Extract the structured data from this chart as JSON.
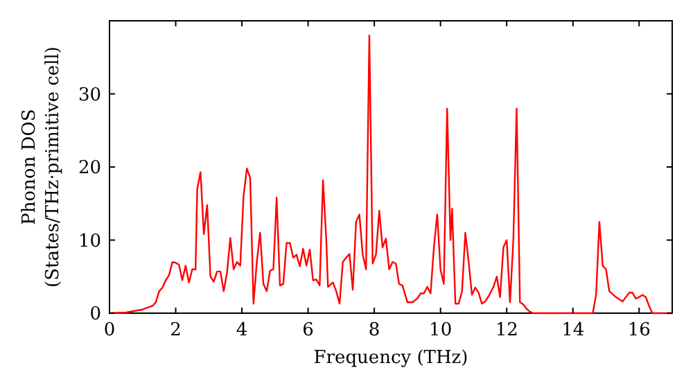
{
  "chart_data": {
    "type": "line",
    "xlabel": "Frequency (THz)",
    "ylabel": "Phonon DOS\n(States/THz·primitive cell)",
    "xlim": [
      0,
      17
    ],
    "ylim": [
      0,
      40
    ],
    "xticks": [
      0,
      2,
      4,
      6,
      8,
      10,
      12,
      14,
      16
    ],
    "yticks": [
      0,
      10,
      20,
      30
    ],
    "grid": false,
    "marker": "none",
    "line_style": "solid",
    "x": [
      0,
      0.5,
      1,
      1.3,
      1.4,
      1.5,
      1.6,
      1.7,
      1.8,
      1.9,
      2.0,
      2.1,
      2.2,
      2.3,
      2.4,
      2.5,
      2.6,
      2.65,
      2.75,
      2.85,
      2.95,
      3.05,
      3.15,
      3.25,
      3.35,
      3.45,
      3.55,
      3.65,
      3.75,
      3.85,
      3.95,
      4.05,
      4.15,
      4.25,
      4.35,
      4.45,
      4.55,
      4.65,
      4.75,
      4.85,
      4.95,
      5.05,
      5.15,
      5.25,
      5.35,
      5.45,
      5.55,
      5.65,
      5.75,
      5.85,
      5.95,
      6.05,
      6.15,
      6.25,
      6.35,
      6.45,
      6.55,
      6.6,
      6.75,
      6.85,
      6.95,
      7.05,
      7.15,
      7.25,
      7.35,
      7.45,
      7.55,
      7.65,
      7.75,
      7.85,
      7.95,
      8.05,
      8.15,
      8.25,
      8.35,
      8.45,
      8.55,
      8.65,
      8.75,
      8.85,
      9.0,
      9.15,
      9.3,
      9.4,
      9.5,
      9.6,
      9.7,
      9.8,
      9.9,
      10.0,
      10.1,
      10.2,
      10.3,
      10.35,
      10.45,
      10.55,
      10.65,
      10.75,
      10.85,
      10.95,
      11.05,
      11.15,
      11.25,
      11.35,
      11.45,
      11.6,
      11.7,
      11.8,
      11.9,
      12.0,
      12.1,
      12.2,
      12.3,
      12.4,
      12.5,
      12.6,
      12.7,
      12.8,
      13.5,
      14.6,
      14.7,
      14.8,
      14.9,
      15.0,
      15.1,
      15.3,
      15.5,
      15.7,
      15.8,
      15.9,
      16.0,
      16.1,
      16.2,
      16.3,
      16.4,
      17
    ],
    "series": [
      {
        "color": "#ff0000",
        "values": [
          0,
          0.1,
          0.5,
          1,
          1.5,
          3,
          3.5,
          4.5,
          5.2,
          7,
          6.9,
          6.6,
          4.5,
          6.5,
          4.2,
          6,
          6,
          17,
          19.3,
          10.8,
          14.8,
          5,
          4.3,
          5.7,
          5.7,
          3,
          5.5,
          10.3,
          6,
          7,
          6.5,
          16,
          19.8,
          18.5,
          1.3,
          7,
          11,
          4,
          3,
          5.8,
          6,
          15.8,
          3.8,
          4,
          9.6,
          9.6,
          7.6,
          8,
          6.4,
          8.8,
          6.5,
          8.7,
          4.5,
          4.6,
          3.8,
          18.2,
          10,
          3.6,
          4.2,
          3,
          1.3,
          7,
          7.6,
          8.1,
          3.2,
          12.5,
          13.5,
          8,
          6,
          38,
          6.8,
          8,
          14,
          9,
          10.2,
          6,
          7,
          6.8,
          4,
          3.8,
          1.5,
          1.5,
          2,
          2.7,
          2.7,
          3.6,
          2.7,
          9,
          13.5,
          6,
          4,
          28,
          10,
          14.3,
          1.3,
          1.3,
          3,
          11,
          7,
          2.5,
          3.5,
          2.8,
          1.3,
          1.6,
          2.3,
          3.6,
          5,
          2.2,
          9,
          10,
          1.5,
          10,
          28,
          1.5,
          1.2,
          0.6,
          0.2,
          0,
          0,
          0,
          2.5,
          12.5,
          6.5,
          6,
          3,
          2.2,
          1.6,
          2.8,
          2.8,
          2,
          2.2,
          2.5,
          2.2,
          1,
          0,
          0
        ]
      }
    ]
  }
}
